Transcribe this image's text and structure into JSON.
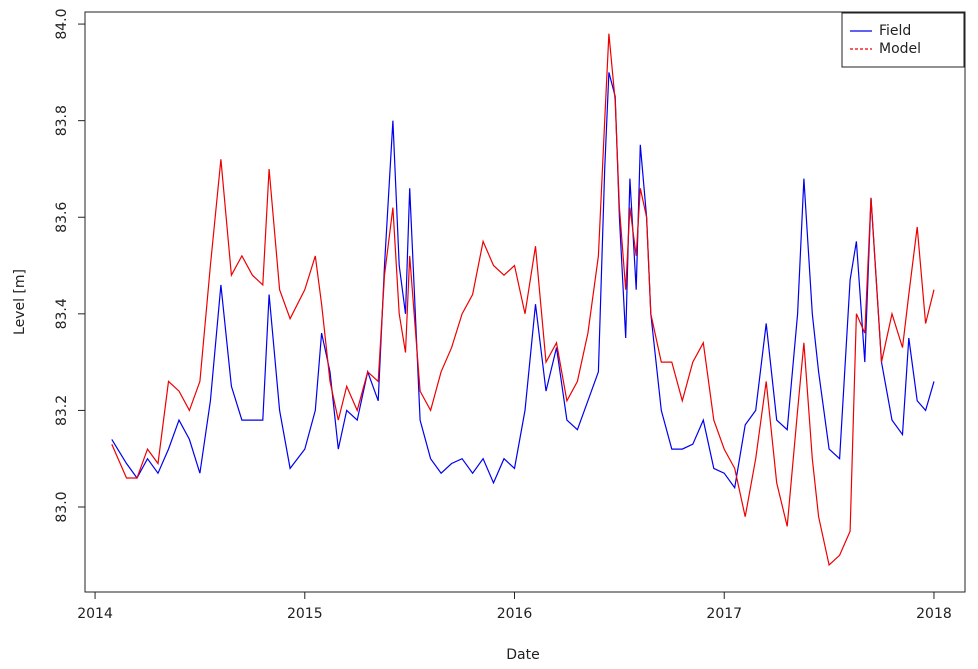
{
  "chart_data": {
    "type": "line",
    "xlabel": "Date",
    "ylabel": "Level [m]",
    "xlim": [
      2013.952,
      2018.148
    ],
    "ylim": [
      82.824,
      84.025
    ],
    "xticks": [
      2014,
      2015,
      2016,
      2017,
      2018
    ],
    "yticks": [
      {
        "value": 83,
        "label": "83.0"
      },
      83.2,
      83.4,
      83.6,
      83.8,
      {
        "value": 84,
        "label": "84.0"
      }
    ],
    "legend": "top-right",
    "x": [
      2014.08,
      2014.15,
      2014.2,
      2014.25,
      2014.3,
      2014.35,
      2014.4,
      2014.45,
      2014.5,
      2014.55,
      2014.6,
      2014.65,
      2014.7,
      2014.75,
      2014.8,
      2014.83,
      2014.88,
      2014.93,
      2015.0,
      2015.05,
      2015.08,
      2015.12,
      2015.16,
      2015.2,
      2015.25,
      2015.3,
      2015.35,
      2015.38,
      2015.42,
      2015.45,
      2015.48,
      2015.5,
      2015.55,
      2015.6,
      2015.65,
      2015.7,
      2015.75,
      2015.8,
      2015.85,
      2015.9,
      2015.95,
      2016.0,
      2016.05,
      2016.1,
      2016.15,
      2016.2,
      2016.25,
      2016.3,
      2016.35,
      2016.4,
      2016.43,
      2016.45,
      2016.48,
      2016.5,
      2016.53,
      2016.55,
      2016.58,
      2016.6,
      2016.63,
      2016.65,
      2016.7,
      2016.75,
      2016.8,
      2016.85,
      2016.9,
      2016.95,
      2017.0,
      2017.05,
      2017.1,
      2017.15,
      2017.2,
      2017.25,
      2017.3,
      2017.35,
      2017.38,
      2017.42,
      2017.45,
      2017.5,
      2017.55,
      2017.6,
      2017.63,
      2017.67,
      2017.7,
      2017.75,
      2017.8,
      2017.85,
      2017.88,
      2017.92,
      2017.96,
      2018.0
    ],
    "series": [
      {
        "name": "Field",
        "color": "#0000ee",
        "values": [
          83.14,
          83.09,
          83.06,
          83.1,
          83.07,
          83.12,
          83.18,
          83.14,
          83.07,
          83.22,
          83.46,
          83.25,
          83.18,
          83.18,
          83.18,
          83.44,
          83.2,
          83.08,
          83.12,
          83.2,
          83.36,
          83.28,
          83.12,
          83.2,
          83.18,
          83.28,
          83.22,
          83.5,
          83.8,
          83.5,
          83.4,
          83.66,
          83.18,
          83.1,
          83.07,
          83.09,
          83.1,
          83.07,
          83.1,
          83.05,
          83.1,
          83.08,
          83.2,
          83.42,
          83.24,
          83.33,
          83.18,
          83.16,
          83.22,
          83.28,
          83.7,
          83.9,
          83.85,
          83.6,
          83.35,
          83.68,
          83.45,
          83.75,
          83.6,
          83.4,
          83.2,
          83.12,
          83.12,
          83.13,
          83.18,
          83.08,
          83.07,
          83.04,
          83.17,
          83.2,
          83.38,
          83.18,
          83.16,
          83.4,
          83.68,
          83.4,
          83.28,
          83.12,
          83.1,
          83.47,
          83.55,
          83.3,
          83.64,
          83.3,
          83.18,
          83.15,
          83.35,
          83.22,
          83.2,
          83.26
        ]
      },
      {
        "name": "Model",
        "color": "#ee0000",
        "values": [
          83.13,
          83.06,
          83.06,
          83.12,
          83.09,
          83.26,
          83.24,
          83.2,
          83.26,
          83.5,
          83.72,
          83.48,
          83.52,
          83.48,
          83.46,
          83.7,
          83.45,
          83.39,
          83.45,
          83.52,
          83.42,
          83.26,
          83.18,
          83.25,
          83.2,
          83.28,
          83.26,
          83.48,
          83.62,
          83.4,
          83.32,
          83.52,
          83.24,
          83.2,
          83.28,
          83.33,
          83.4,
          83.44,
          83.55,
          83.5,
          83.48,
          83.5,
          83.4,
          83.54,
          83.3,
          83.34,
          83.22,
          83.26,
          83.36,
          83.52,
          83.8,
          83.98,
          83.84,
          83.62,
          83.45,
          83.62,
          83.52,
          83.66,
          83.6,
          83.4,
          83.3,
          83.3,
          83.22,
          83.3,
          83.34,
          83.18,
          83.12,
          83.08,
          82.98,
          83.1,
          83.26,
          83.05,
          82.96,
          83.2,
          83.34,
          83.1,
          82.98,
          82.88,
          82.9,
          82.95,
          83.4,
          83.36,
          83.64,
          83.3,
          83.4,
          83.33,
          83.44,
          83.58,
          83.38,
          83.45
        ]
      }
    ]
  }
}
